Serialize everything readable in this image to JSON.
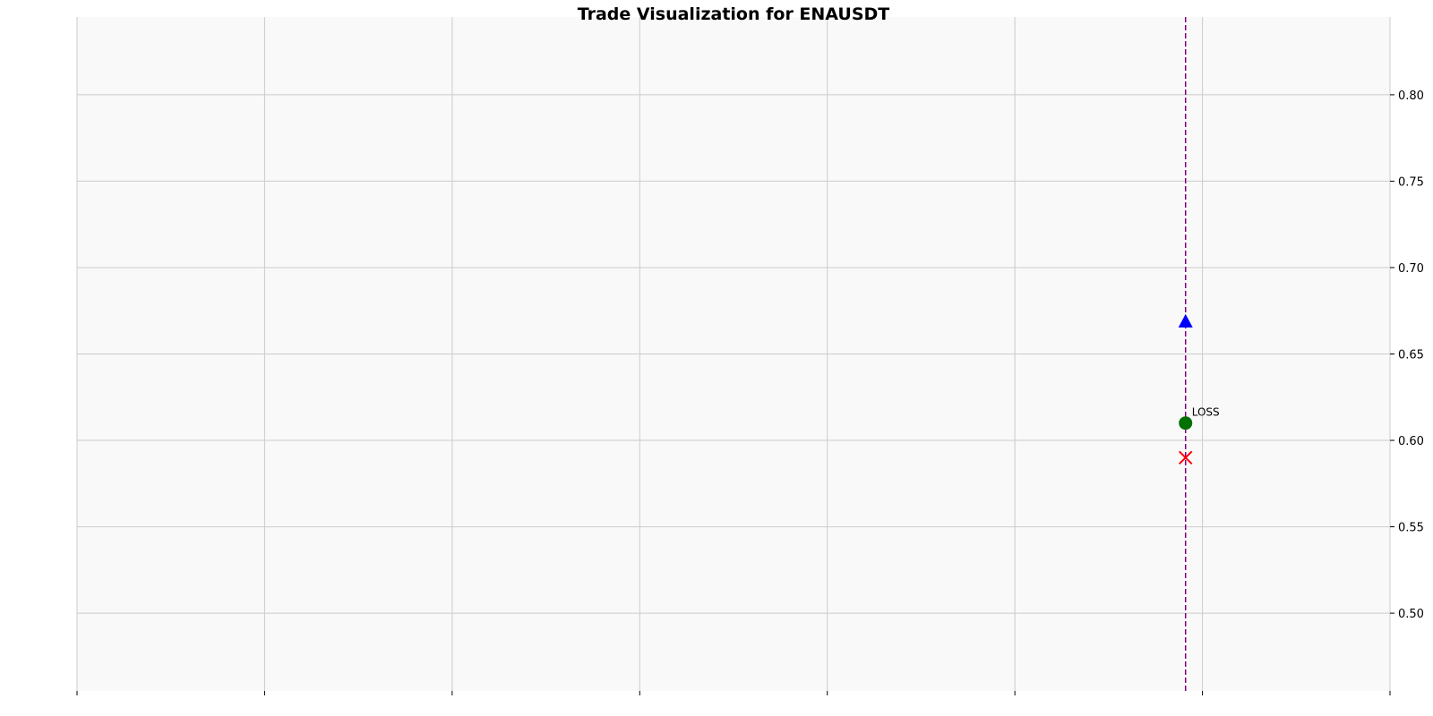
{
  "chart_data": {
    "type": "scatter",
    "title": "Trade Visualization for ENAUSDT",
    "xlabel": "",
    "ylabel": "",
    "ylim": [
      0.455,
      0.845
    ],
    "xlim": [
      0,
      7
    ],
    "y_ticks": [
      "0.50",
      "0.55",
      "0.60",
      "0.65",
      "0.70",
      "0.75",
      "0.80"
    ],
    "x_tick_count": 8,
    "grid": true,
    "y_axis_side": "right",
    "background_color": "#f9f9f9",
    "grid_color": "#cccccc",
    "vline": {
      "x": 5.91,
      "color": "#800080",
      "style": "dashed"
    },
    "markers": [
      {
        "shape": "triangle-up",
        "x": 5.91,
        "y": 0.669,
        "color": "#0000ff"
      },
      {
        "shape": "circle",
        "x": 5.91,
        "y": 0.61,
        "color": "#007000"
      },
      {
        "shape": "x",
        "x": 5.91,
        "y": 0.59,
        "color": "#ff0000"
      }
    ],
    "annotations": [
      {
        "text": "LOSS",
        "x": 5.91,
        "y": 0.61
      }
    ]
  }
}
